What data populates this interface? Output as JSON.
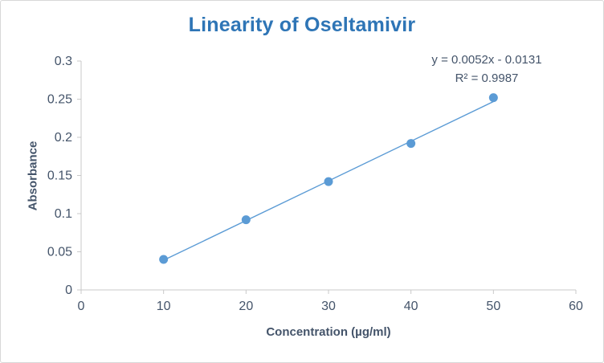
{
  "chart": {
    "title": "Linearity of Oseltamivir",
    "equation_line1": "y = 0.0052x - 0.0131",
    "equation_line2": "R² = 0.9987",
    "xlabel": "Concentration (µg/ml)",
    "ylabel": "Absorbance"
  },
  "chart_data": {
    "type": "scatter",
    "title": "Linearity of Oseltamivir",
    "xlabel": "Concentration (µg/ml)",
    "ylabel": "Absorbance",
    "x": [
      10,
      20,
      30,
      40,
      50
    ],
    "y": [
      0.04,
      0.092,
      0.142,
      0.192,
      0.252
    ],
    "trendline": {
      "slope": 0.0052,
      "intercept": -0.0131,
      "equation": "y = 0.0052x - 0.0131",
      "r_squared": 0.9987,
      "x_start": 10,
      "x_end": 50
    },
    "xlim": [
      0,
      60
    ],
    "ylim": [
      0,
      0.3
    ],
    "x_ticks": [
      0,
      10,
      20,
      30,
      40,
      50,
      60
    ],
    "x_tick_labels": [
      "0",
      "10",
      "20",
      "30",
      "40",
      "50",
      "60"
    ],
    "y_ticks": [
      0,
      0.05,
      0.1,
      0.15,
      0.2,
      0.25,
      0.3
    ],
    "y_tick_labels": [
      "0",
      "0.05",
      "0.1",
      "0.15",
      "0.2",
      "0.25",
      "0.3"
    ],
    "grid": false,
    "legend": false,
    "colors": {
      "marker": "#5B9BD5",
      "trendline": "#5B9BD5",
      "title": "#2E75B6",
      "axis_text": "#44546A",
      "axis_line": "#C9C9C9"
    }
  }
}
